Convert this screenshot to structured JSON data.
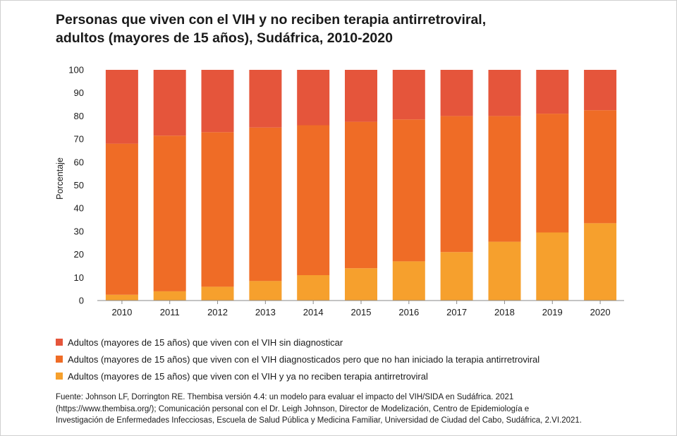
{
  "title_lines": [
    "Personas que viven con el VIH y no reciben terapia antirretroviral,",
    "adultos (mayores de 15 años), Sudáfrica, 2010-2020"
  ],
  "source_lines": [
    "Fuente: Johnson LF, Dorrington RE. Thembisa versión 4.4: un modelo para evaluar el impacto del VIH/SIDA en Sudáfrica. 2021",
    "(https://www.thembisa.org/); Comunicación personal con el Dr. Leigh Johnson, Director de Modelización, Centro de Epidemiología e",
    "Investigación de Enfermedades Infecciosas, Escuela de Salud Pública y Medicina Familiar, Universidad de Ciudad del Cabo, Sudáfrica, 2.VI.2021."
  ],
  "chart_data": {
    "type": "bar",
    "stacked": true,
    "title": "Personas que viven con el VIH y no reciben terapia antirretroviral, adultos (mayores de 15 años), Sudáfrica, 2010-2020",
    "xlabel": "",
    "ylabel": "Porcentaje",
    "ylim": [
      0,
      100
    ],
    "yticks": [
      0,
      10,
      20,
      30,
      40,
      50,
      60,
      70,
      80,
      90,
      100
    ],
    "grid": false,
    "legend_position": "bottom",
    "categories": [
      "2010",
      "2011",
      "2012",
      "2013",
      "2014",
      "2015",
      "2016",
      "2017",
      "2018",
      "2019",
      "2020"
    ],
    "series": [
      {
        "name": "Adultos (mayores de 15 años) que viven con el VIH y ya no reciben terapia antirretroviral",
        "color": "#f6a02d",
        "values": [
          2.5,
          4,
          6,
          8.5,
          11,
          14,
          17,
          21,
          25.5,
          29.5,
          33.5
        ]
      },
      {
        "name": "Adultos (mayores de 15 años) que viven con el VIH diagnosticados pero que no han iniciado la terapia antirretroviral",
        "color": "#ef6c26",
        "values": [
          65.5,
          67.5,
          67,
          66.5,
          65,
          63.5,
          61.5,
          59,
          54.5,
          51.5,
          49
        ]
      },
      {
        "name": "Adultos (mayores de 15 años) que viven con el VIH sin diagnosticar",
        "color": "#e5553b",
        "values": [
          32,
          28.5,
          27,
          25,
          24,
          22.5,
          21.5,
          20,
          20,
          19,
          17.5
        ]
      }
    ],
    "legend": [
      {
        "label": "Adultos (mayores de 15 años) que viven con el VIH sin diagnosticar",
        "color": "#e5553b"
      },
      {
        "label": "Adultos (mayores de 15 años) que viven con el VIH diagnosticados pero que no han iniciado la terapia antirretroviral",
        "color": "#ef6c26"
      },
      {
        "label": "Adultos (mayores de 15 años) que viven con el VIH y ya no reciben terapia antirretroviral",
        "color": "#f6a02d"
      }
    ]
  }
}
